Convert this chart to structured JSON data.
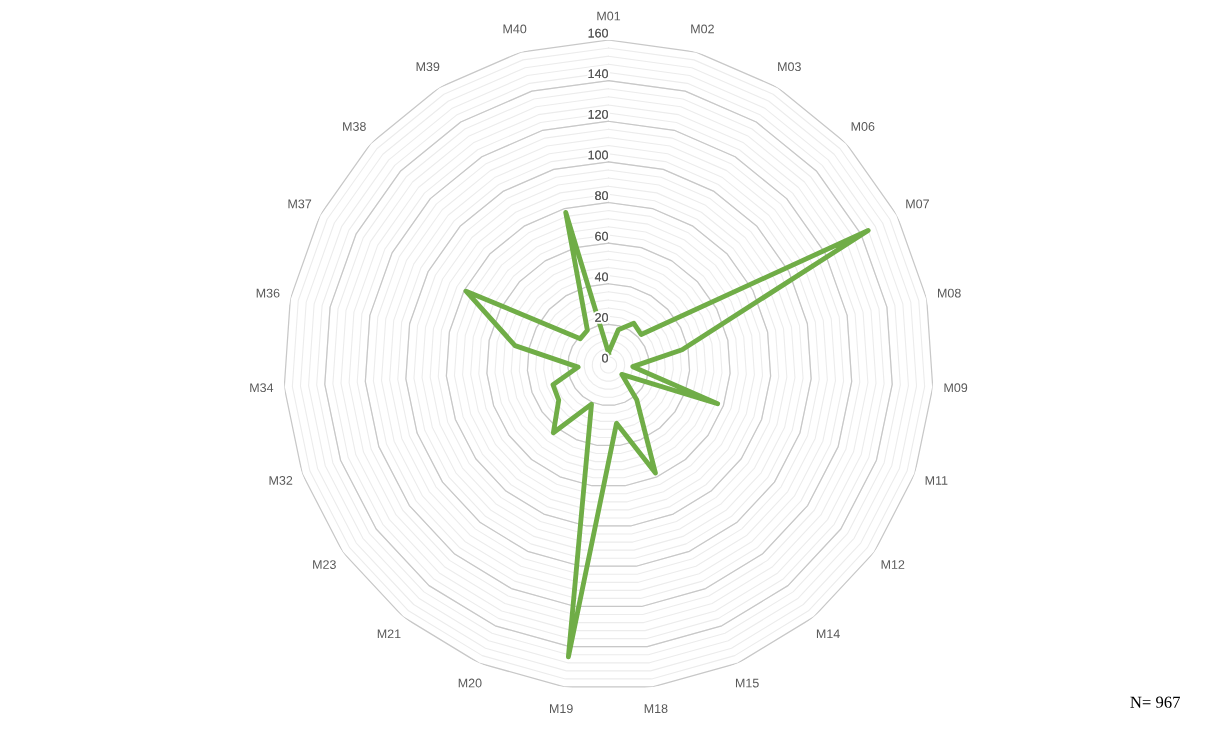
{
  "chart_data": {
    "type": "radar",
    "categories": [
      "M01",
      "M02",
      "M03",
      "M06",
      "M07",
      "M08",
      "M09",
      "M11",
      "M12",
      "M14",
      "M15",
      "M18",
      "M19",
      "M20",
      "M21",
      "M23",
      "M32",
      "M34",
      "M36",
      "M37",
      "M38",
      "M39",
      "M40"
    ],
    "series": [
      {
        "color": "#70ad47",
        "values": [
          6,
          18,
          24,
          22,
          144,
          37,
          12,
          57,
          8,
          22,
          58,
          29,
          145,
          21,
          43,
          30,
          29,
          15,
          47,
          79,
          19,
          20,
          78
        ]
      }
    ],
    "ylim": [
      0,
      160
    ],
    "yticks": [
      0,
      20,
      40,
      60,
      80,
      100,
      120,
      140,
      160
    ],
    "grid": true,
    "marker": "none",
    "line_style": "solid",
    "annotations": [
      "N= 967"
    ]
  }
}
